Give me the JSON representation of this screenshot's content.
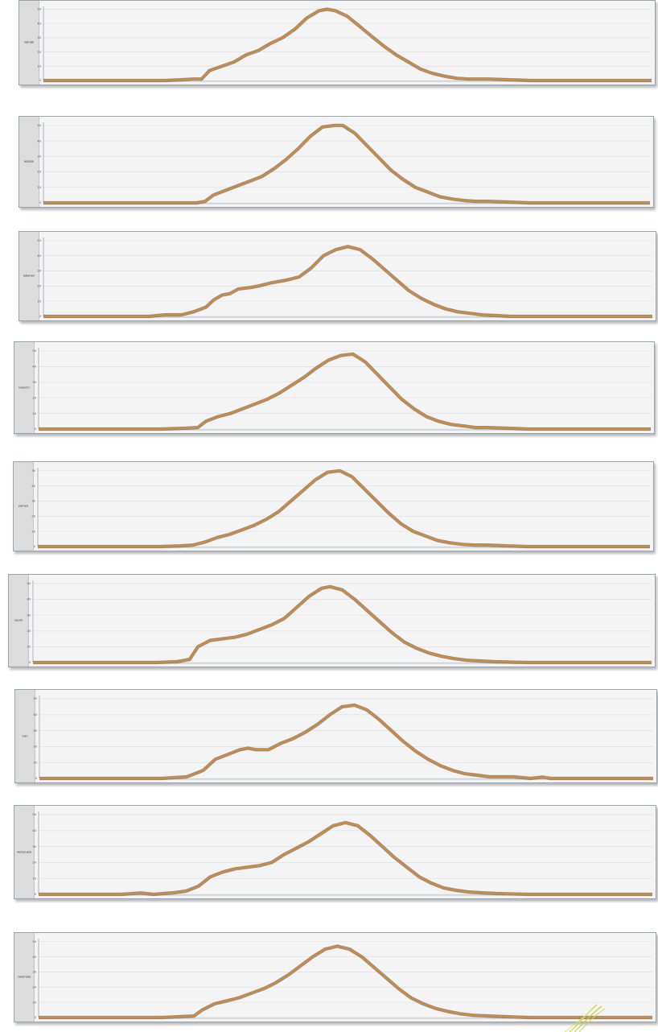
{
  "chart_data": [
    {
      "type": "line",
      "ylabel": "nairobi",
      "yticks": [
        "0",
        "10",
        "20",
        "30",
        "40",
        "50"
      ],
      "ylim": [
        0,
        52
      ],
      "points": [
        [
          0,
          0
        ],
        [
          0.3,
          0
        ],
        [
          0.34,
          0.5
        ],
        [
          0.37,
          1
        ],
        [
          0.39,
          1
        ],
        [
          0.41,
          7
        ],
        [
          0.44,
          10
        ],
        [
          0.47,
          13
        ],
        [
          0.5,
          18
        ],
        [
          0.53,
          21
        ],
        [
          0.56,
          26
        ],
        [
          0.59,
          30
        ],
        [
          0.62,
          36
        ],
        [
          0.65,
          44
        ],
        [
          0.68,
          49
        ],
        [
          0.7,
          50
        ],
        [
          0.72,
          49
        ],
        [
          0.75,
          45
        ],
        [
          0.78,
          38
        ],
        [
          0.81,
          31
        ],
        [
          0.84,
          24
        ],
        [
          0.87,
          18
        ],
        [
          0.9,
          13
        ],
        [
          0.93,
          8
        ],
        [
          0.96,
          5
        ],
        [
          0.99,
          3
        ],
        [
          1.02,
          1.5
        ],
        [
          1.05,
          1
        ],
        [
          1.1,
          1
        ],
        [
          1.15,
          0.5
        ],
        [
          1.2,
          0
        ],
        [
          1.5,
          0
        ]
      ]
    },
    {
      "type": "line",
      "ylabel": "aleppo",
      "yticks": [
        "0",
        "10",
        "20",
        "30",
        "40",
        "50"
      ],
      "ylim": [
        0,
        52
      ],
      "points": [
        [
          0,
          0
        ],
        [
          0.35,
          0
        ],
        [
          0.38,
          0
        ],
        [
          0.4,
          1
        ],
        [
          0.42,
          5
        ],
        [
          0.45,
          8
        ],
        [
          0.48,
          11
        ],
        [
          0.51,
          14
        ],
        [
          0.54,
          17
        ],
        [
          0.57,
          22
        ],
        [
          0.6,
          28
        ],
        [
          0.63,
          35
        ],
        [
          0.66,
          43
        ],
        [
          0.69,
          49
        ],
        [
          0.72,
          50
        ],
        [
          0.74,
          50
        ],
        [
          0.77,
          45
        ],
        [
          0.8,
          37
        ],
        [
          0.83,
          29
        ],
        [
          0.86,
          21
        ],
        [
          0.89,
          15
        ],
        [
          0.92,
          10
        ],
        [
          0.95,
          7
        ],
        [
          0.98,
          4
        ],
        [
          1.01,
          2.5
        ],
        [
          1.04,
          1.5
        ],
        [
          1.07,
          1
        ],
        [
          1.1,
          1
        ],
        [
          1.15,
          0.5
        ],
        [
          1.2,
          0
        ],
        [
          1.5,
          0
        ]
      ]
    },
    {
      "type": "line",
      "ylabel": "lebanon",
      "yticks": [
        "0",
        "10",
        "20",
        "30",
        "40",
        "50"
      ],
      "ylim": [
        0,
        52
      ],
      "points": [
        [
          0,
          0
        ],
        [
          0.2,
          0
        ],
        [
          0.26,
          0
        ],
        [
          0.3,
          1
        ],
        [
          0.34,
          1
        ],
        [
          0.37,
          3
        ],
        [
          0.4,
          6
        ],
        [
          0.42,
          11
        ],
        [
          0.44,
          14
        ],
        [
          0.46,
          15
        ],
        [
          0.48,
          18
        ],
        [
          0.51,
          19
        ],
        [
          0.53,
          20
        ],
        [
          0.56,
          22
        ],
        [
          0.6,
          24
        ],
        [
          0.63,
          26
        ],
        [
          0.66,
          32
        ],
        [
          0.69,
          40
        ],
        [
          0.72,
          44
        ],
        [
          0.75,
          46
        ],
        [
          0.78,
          44
        ],
        [
          0.81,
          38
        ],
        [
          0.84,
          31
        ],
        [
          0.87,
          24
        ],
        [
          0.9,
          17
        ],
        [
          0.93,
          12
        ],
        [
          0.96,
          8
        ],
        [
          0.99,
          5
        ],
        [
          1.02,
          3
        ],
        [
          1.05,
          2
        ],
        [
          1.08,
          1
        ],
        [
          1.12,
          0.5
        ],
        [
          1.15,
          0
        ],
        [
          1.5,
          0
        ]
      ]
    },
    {
      "type": "line",
      "ylabel": "karachi",
      "yticks": [
        "0",
        "10",
        "20",
        "30",
        "40",
        "50"
      ],
      "ylim": [
        0,
        52
      ],
      "points": [
        [
          0,
          0
        ],
        [
          0.1,
          0
        ],
        [
          0.3,
          0
        ],
        [
          0.36,
          0.5
        ],
        [
          0.39,
          1
        ],
        [
          0.41,
          5
        ],
        [
          0.44,
          8
        ],
        [
          0.47,
          10
        ],
        [
          0.5,
          13
        ],
        [
          0.53,
          16
        ],
        [
          0.56,
          19
        ],
        [
          0.59,
          23
        ],
        [
          0.62,
          28
        ],
        [
          0.65,
          33
        ],
        [
          0.68,
          39
        ],
        [
          0.71,
          44
        ],
        [
          0.74,
          47
        ],
        [
          0.77,
          48
        ],
        [
          0.8,
          43
        ],
        [
          0.83,
          35
        ],
        [
          0.86,
          27
        ],
        [
          0.89,
          19
        ],
        [
          0.92,
          13
        ],
        [
          0.95,
          8
        ],
        [
          0.98,
          5
        ],
        [
          1.01,
          3
        ],
        [
          1.04,
          2
        ],
        [
          1.07,
          1
        ],
        [
          1.1,
          1
        ],
        [
          1.15,
          0.5
        ],
        [
          1.2,
          0
        ],
        [
          1.5,
          0
        ]
      ]
    },
    {
      "type": "line",
      "ylabel": "yemen",
      "yticks": [
        "0",
        "10",
        "20",
        "30",
        "40",
        "50"
      ],
      "ylim": [
        0,
        52
      ],
      "points": [
        [
          0,
          0
        ],
        [
          0.3,
          0
        ],
        [
          0.35,
          0.5
        ],
        [
          0.38,
          1
        ],
        [
          0.41,
          3
        ],
        [
          0.44,
          6
        ],
        [
          0.47,
          8
        ],
        [
          0.5,
          11
        ],
        [
          0.53,
          14
        ],
        [
          0.56,
          18
        ],
        [
          0.59,
          23
        ],
        [
          0.62,
          30
        ],
        [
          0.65,
          37
        ],
        [
          0.68,
          44
        ],
        [
          0.71,
          49
        ],
        [
          0.74,
          50
        ],
        [
          0.77,
          46
        ],
        [
          0.8,
          38
        ],
        [
          0.83,
          30
        ],
        [
          0.86,
          22
        ],
        [
          0.89,
          15
        ],
        [
          0.92,
          10
        ],
        [
          0.95,
          7
        ],
        [
          0.98,
          4
        ],
        [
          1.01,
          2.5
        ],
        [
          1.04,
          1.5
        ],
        [
          1.07,
          1
        ],
        [
          1.1,
          1
        ],
        [
          1.15,
          0.5
        ],
        [
          1.2,
          0
        ],
        [
          1.5,
          0
        ]
      ]
    },
    {
      "type": "line",
      "ylabel": "saudi",
      "yticks": [
        "0",
        "10",
        "20",
        "30",
        "40",
        "50"
      ],
      "ylim": [
        0,
        52
      ],
      "points": [
        [
          0,
          0
        ],
        [
          0.3,
          0
        ],
        [
          0.35,
          0.5
        ],
        [
          0.38,
          2
        ],
        [
          0.4,
          10
        ],
        [
          0.43,
          14
        ],
        [
          0.46,
          15
        ],
        [
          0.49,
          16
        ],
        [
          0.52,
          18
        ],
        [
          0.55,
          21
        ],
        [
          0.58,
          24
        ],
        [
          0.61,
          28
        ],
        [
          0.64,
          35
        ],
        [
          0.67,
          42
        ],
        [
          0.7,
          47
        ],
        [
          0.72,
          48
        ],
        [
          0.75,
          46
        ],
        [
          0.78,
          40
        ],
        [
          0.81,
          33
        ],
        [
          0.84,
          26
        ],
        [
          0.87,
          19
        ],
        [
          0.9,
          13
        ],
        [
          0.93,
          9
        ],
        [
          0.96,
          6
        ],
        [
          0.99,
          4
        ],
        [
          1.02,
          2.5
        ],
        [
          1.05,
          1.5
        ],
        [
          1.08,
          1
        ],
        [
          1.12,
          0.5
        ],
        [
          1.2,
          0
        ],
        [
          1.5,
          0
        ]
      ]
    },
    {
      "type": "line",
      "ylabel": "iran",
      "yticks": [
        "0",
        "10",
        "20",
        "30",
        "40",
        "50"
      ],
      "ylim": [
        0,
        52
      ],
      "points": [
        [
          0,
          0
        ],
        [
          0.3,
          0
        ],
        [
          0.33,
          0.5
        ],
        [
          0.36,
          1
        ],
        [
          0.38,
          3
        ],
        [
          0.4,
          5
        ],
        [
          0.43,
          12
        ],
        [
          0.46,
          15
        ],
        [
          0.49,
          18
        ],
        [
          0.51,
          19
        ],
        [
          0.53,
          18
        ],
        [
          0.56,
          18
        ],
        [
          0.59,
          22
        ],
        [
          0.62,
          25
        ],
        [
          0.65,
          29
        ],
        [
          0.68,
          34
        ],
        [
          0.71,
          40
        ],
        [
          0.74,
          45
        ],
        [
          0.77,
          46
        ],
        [
          0.8,
          43
        ],
        [
          0.83,
          37
        ],
        [
          0.86,
          30
        ],
        [
          0.89,
          23
        ],
        [
          0.92,
          17
        ],
        [
          0.95,
          12
        ],
        [
          0.98,
          8
        ],
        [
          1.01,
          5
        ],
        [
          1.04,
          3
        ],
        [
          1.07,
          2
        ],
        [
          1.1,
          1
        ],
        [
          1.13,
          1
        ],
        [
          1.16,
          1
        ],
        [
          1.2,
          0
        ],
        [
          1.23,
          0.8
        ],
        [
          1.25,
          0
        ],
        [
          1.5,
          0
        ]
      ]
    },
    {
      "type": "line",
      "ylabel": "venezuela",
      "yticks": [
        "0",
        "10",
        "20",
        "30",
        "40",
        "50"
      ],
      "ylim": [
        0,
        52
      ],
      "points": [
        [
          0,
          0
        ],
        [
          0.2,
          0
        ],
        [
          0.25,
          0.8
        ],
        [
          0.28,
          0
        ],
        [
          0.33,
          1
        ],
        [
          0.36,
          2
        ],
        [
          0.39,
          5
        ],
        [
          0.42,
          11
        ],
        [
          0.45,
          14
        ],
        [
          0.48,
          16
        ],
        [
          0.51,
          17
        ],
        [
          0.54,
          18
        ],
        [
          0.57,
          20
        ],
        [
          0.6,
          25
        ],
        [
          0.63,
          29
        ],
        [
          0.66,
          33
        ],
        [
          0.69,
          38
        ],
        [
          0.72,
          43
        ],
        [
          0.75,
          45
        ],
        [
          0.78,
          43
        ],
        [
          0.81,
          37
        ],
        [
          0.84,
          30
        ],
        [
          0.87,
          23
        ],
        [
          0.9,
          17
        ],
        [
          0.93,
          11
        ],
        [
          0.96,
          7
        ],
        [
          0.99,
          4
        ],
        [
          1.02,
          2.5
        ],
        [
          1.05,
          1.5
        ],
        [
          1.08,
          1
        ],
        [
          1.12,
          0.5
        ],
        [
          1.2,
          0
        ],
        [
          1.5,
          0
        ]
      ]
    },
    {
      "type": "line",
      "ylabel": "colombia",
      "yticks": [
        "0",
        "10",
        "20",
        "30",
        "40",
        "50"
      ],
      "ylim": [
        0,
        52
      ],
      "points": [
        [
          0,
          0
        ],
        [
          0.3,
          0
        ],
        [
          0.34,
          0.5
        ],
        [
          0.38,
          1
        ],
        [
          0.4,
          5
        ],
        [
          0.43,
          9
        ],
        [
          0.46,
          11
        ],
        [
          0.49,
          13
        ],
        [
          0.52,
          16
        ],
        [
          0.55,
          19
        ],
        [
          0.58,
          23
        ],
        [
          0.61,
          28
        ],
        [
          0.64,
          34
        ],
        [
          0.67,
          40
        ],
        [
          0.7,
          45
        ],
        [
          0.73,
          47
        ],
        [
          0.76,
          45
        ],
        [
          0.79,
          40
        ],
        [
          0.82,
          33
        ],
        [
          0.85,
          26
        ],
        [
          0.88,
          19
        ],
        [
          0.91,
          13
        ],
        [
          0.94,
          9
        ],
        [
          0.97,
          6
        ],
        [
          1.0,
          4
        ],
        [
          1.03,
          2.5
        ],
        [
          1.06,
          1.5
        ],
        [
          1.1,
          1
        ],
        [
          1.15,
          0.5
        ],
        [
          1.2,
          0
        ],
        [
          1.5,
          0
        ]
      ]
    }
  ]
}
